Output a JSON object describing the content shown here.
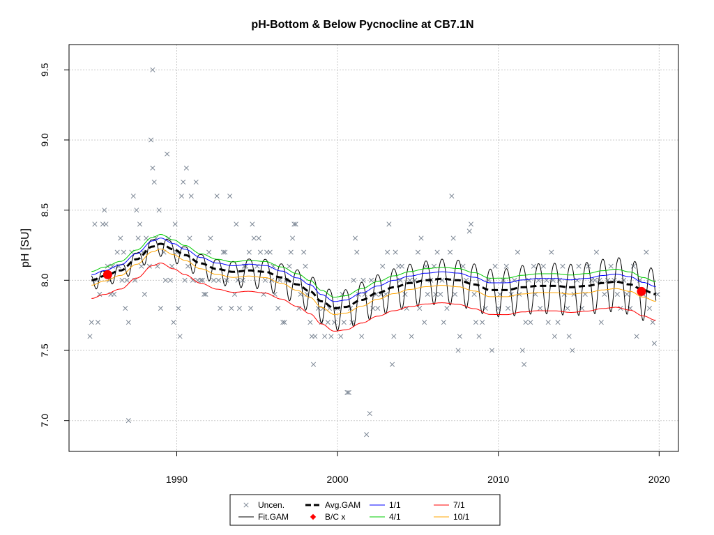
{
  "chart_data": {
    "type": "scatter",
    "title": "pH-Bottom & Below Pycnocline at CB7.1N",
    "xlabel": "",
    "ylabel": "pH [SU]",
    "xlim": [
      1983.3,
      2021.2
    ],
    "ylim": [
      6.78,
      9.68
    ],
    "x_ticks": [
      1990,
      2000,
      2010,
      2020
    ],
    "y_ticks": [
      7.0,
      7.5,
      8.0,
      8.5,
      9.0,
      9.5
    ],
    "x_tick_labels": [
      "1990",
      "2000",
      "2010",
      "2020"
    ],
    "y_tick_labels": [
      "7.0",
      "7.5",
      "8.0",
      "8.5",
      "9.0",
      "9.5"
    ],
    "grid": true,
    "legend_position": "bottom-center",
    "colors": {
      "uncensored": "#7a8593",
      "fit_gam": "#000000",
      "avg_gam": "#000000",
      "bc_x": "#ff0000",
      "d1_1": "#0000ff",
      "d4_1": "#00cc00",
      "d7_1": "#ff0000",
      "d10_1": "#ffa500"
    },
    "legend": [
      {
        "key": "uncen",
        "label": "Uncen."
      },
      {
        "key": "fit",
        "label": "Fit.GAM"
      },
      {
        "key": "avg",
        "label": "Avg.GAM"
      },
      {
        "key": "bc",
        "label": "B/C x"
      },
      {
        "key": "d1",
        "label": "1/1"
      },
      {
        "key": "d4",
        "label": "4/1"
      },
      {
        "key": "d7",
        "label": "7/1"
      },
      {
        "key": "d10",
        "label": "10/1"
      }
    ],
    "series": [
      {
        "name": "Uncen.",
        "type": "scatter",
        "marker": "x",
        "points": [
          [
            1984.6,
            7.6
          ],
          [
            1984.7,
            7.7
          ],
          [
            1984.9,
            8.4
          ],
          [
            1985.0,
            8.0
          ],
          [
            1985.1,
            7.7
          ],
          [
            1985.2,
            7.9
          ],
          [
            1985.4,
            8.4
          ],
          [
            1985.5,
            8.5
          ],
          [
            1985.6,
            8.4
          ],
          [
            1985.7,
            8.1
          ],
          [
            1985.8,
            8.0
          ],
          [
            1985.9,
            7.9
          ],
          [
            1986.0,
            8.1
          ],
          [
            1986.1,
            7.9
          ],
          [
            1986.3,
            8.2
          ],
          [
            1986.4,
            8.1
          ],
          [
            1986.5,
            8.3
          ],
          [
            1986.6,
            8.0
          ],
          [
            1986.7,
            8.2
          ],
          [
            1986.8,
            7.8
          ],
          [
            1986.9,
            8.0
          ],
          [
            1987.0,
            7.7
          ],
          [
            1987.0,
            7.0
          ],
          [
            1987.2,
            8.2
          ],
          [
            1987.3,
            8.6
          ],
          [
            1987.4,
            8.0
          ],
          [
            1987.5,
            8.5
          ],
          [
            1987.6,
            8.3
          ],
          [
            1987.7,
            8.4
          ],
          [
            1987.8,
            8.1
          ],
          [
            1987.9,
            8.2
          ],
          [
            1988.0,
            7.9
          ],
          [
            1988.1,
            8.3
          ],
          [
            1988.3,
            8.1
          ],
          [
            1988.4,
            9.0
          ],
          [
            1988.5,
            8.8
          ],
          [
            1988.5,
            9.5
          ],
          [
            1988.6,
            8.7
          ],
          [
            1988.7,
            8.3
          ],
          [
            1988.8,
            8.1
          ],
          [
            1988.9,
            8.5
          ],
          [
            1989.0,
            7.8
          ],
          [
            1989.2,
            8.2
          ],
          [
            1989.3,
            8.0
          ],
          [
            1989.4,
            8.9
          ],
          [
            1989.5,
            8.3
          ],
          [
            1989.6,
            8.0
          ],
          [
            1989.7,
            8.1
          ],
          [
            1989.8,
            7.7
          ],
          [
            1989.9,
            8.4
          ],
          [
            1990.0,
            8.2
          ],
          [
            1990.1,
            7.8
          ],
          [
            1990.2,
            7.6
          ],
          [
            1990.3,
            8.6
          ],
          [
            1990.4,
            8.7
          ],
          [
            1990.5,
            8.0
          ],
          [
            1990.6,
            8.8
          ],
          [
            1990.7,
            8.1
          ],
          [
            1990.8,
            8.3
          ],
          [
            1990.9,
            8.6
          ],
          [
            1991.0,
            8.0
          ],
          [
            1991.2,
            8.7
          ],
          [
            1991.3,
            8.0
          ],
          [
            1991.5,
            8.0
          ],
          [
            1991.6,
            8.0
          ],
          [
            1991.7,
            7.9
          ],
          [
            1991.8,
            7.9
          ],
          [
            1992.0,
            8.2
          ],
          [
            1992.1,
            8.3
          ],
          [
            1992.3,
            8.0
          ],
          [
            1992.5,
            8.6
          ],
          [
            1992.6,
            8.0
          ],
          [
            1992.7,
            7.8
          ],
          [
            1992.9,
            8.2
          ],
          [
            1993.0,
            8.2
          ],
          [
            1993.1,
            8.0
          ],
          [
            1993.3,
            8.6
          ],
          [
            1993.4,
            7.8
          ],
          [
            1993.6,
            7.9
          ],
          [
            1993.7,
            8.4
          ],
          [
            1993.8,
            8.0
          ],
          [
            1993.9,
            7.8
          ],
          [
            1994.1,
            8.0
          ],
          [
            1994.2,
            8.1
          ],
          [
            1994.3,
            8.1
          ],
          [
            1994.5,
            8.2
          ],
          [
            1994.6,
            7.8
          ],
          [
            1994.7,
            8.4
          ],
          [
            1994.8,
            8.3
          ],
          [
            1995.0,
            8.1
          ],
          [
            1995.1,
            8.3
          ],
          [
            1995.2,
            8.2
          ],
          [
            1995.4,
            7.9
          ],
          [
            1995.5,
            8.0
          ],
          [
            1995.6,
            8.2
          ],
          [
            1995.8,
            8.2
          ],
          [
            1995.9,
            8.0
          ],
          [
            1996.0,
            8.1
          ],
          [
            1996.1,
            7.9
          ],
          [
            1996.3,
            7.8
          ],
          [
            1996.4,
            8.0
          ],
          [
            1996.6,
            7.7
          ],
          [
            1996.7,
            7.7
          ],
          [
            1996.8,
            8.0
          ],
          [
            1997.0,
            8.1
          ],
          [
            1997.1,
            8.2
          ],
          [
            1997.2,
            8.3
          ],
          [
            1997.3,
            8.4
          ],
          [
            1997.4,
            8.4
          ],
          [
            1997.6,
            7.8
          ],
          [
            1997.7,
            7.9
          ],
          [
            1997.9,
            8.2
          ],
          [
            1998.0,
            8.1
          ],
          [
            1998.1,
            7.9
          ],
          [
            1998.3,
            7.7
          ],
          [
            1998.4,
            7.6
          ],
          [
            1998.5,
            7.4
          ],
          [
            1998.6,
            7.6
          ],
          [
            1998.8,
            7.8
          ],
          [
            1999.0,
            7.7
          ],
          [
            1999.1,
            7.8
          ],
          [
            1999.2,
            7.6
          ],
          [
            1999.4,
            7.7
          ],
          [
            1999.5,
            7.8
          ],
          [
            1999.6,
            7.6
          ],
          [
            1999.8,
            7.7
          ],
          [
            2000.0,
            7.8
          ],
          [
            2000.2,
            7.6
          ],
          [
            2000.3,
            7.9
          ],
          [
            2000.4,
            7.7
          ],
          [
            2000.6,
            7.2
          ],
          [
            2000.7,
            7.2
          ],
          [
            2000.8,
            7.8
          ],
          [
            2000.9,
            7.7
          ],
          [
            2001.0,
            8.0
          ],
          [
            2001.1,
            8.3
          ],
          [
            2001.2,
            8.2
          ],
          [
            2001.3,
            7.9
          ],
          [
            2001.5,
            7.6
          ],
          [
            2001.6,
            8.0
          ],
          [
            2001.7,
            7.9
          ],
          [
            2001.8,
            6.9
          ],
          [
            2002.0,
            7.05
          ],
          [
            2002.1,
            8.0
          ],
          [
            2002.2,
            7.8
          ],
          [
            2002.4,
            7.9
          ],
          [
            2002.5,
            7.8
          ],
          [
            2002.7,
            7.9
          ],
          [
            2002.8,
            8.1
          ],
          [
            2003.0,
            7.9
          ],
          [
            2003.1,
            8.2
          ],
          [
            2003.2,
            8.4
          ],
          [
            2003.4,
            7.4
          ],
          [
            2003.5,
            7.6
          ],
          [
            2003.6,
            8.2
          ],
          [
            2003.8,
            8.1
          ],
          [
            2003.9,
            8.0
          ],
          [
            2004.0,
            8.1
          ],
          [
            2004.2,
            7.9
          ],
          [
            2004.3,
            7.8
          ],
          [
            2004.5,
            8.0
          ],
          [
            2004.6,
            7.6
          ],
          [
            2004.8,
            8.0
          ],
          [
            2005.0,
            8.2
          ],
          [
            2005.1,
            7.8
          ],
          [
            2005.2,
            8.3
          ],
          [
            2005.4,
            7.7
          ],
          [
            2005.5,
            8.1
          ],
          [
            2005.6,
            7.9
          ],
          [
            2005.8,
            8.0
          ],
          [
            2006.0,
            8.1
          ],
          [
            2006.1,
            7.9
          ],
          [
            2006.2,
            8.2
          ],
          [
            2006.4,
            7.9
          ],
          [
            2006.5,
            8.0
          ],
          [
            2006.6,
            7.7
          ],
          [
            2006.8,
            7.8
          ],
          [
            2007.0,
            8.2
          ],
          [
            2007.1,
            8.6
          ],
          [
            2007.2,
            8.3
          ],
          [
            2007.3,
            7.9
          ],
          [
            2007.5,
            7.5
          ],
          [
            2007.6,
            7.6
          ],
          [
            2007.8,
            8.1
          ],
          [
            2008.0,
            8.0
          ],
          [
            2008.2,
            8.35
          ],
          [
            2008.3,
            8.4
          ],
          [
            2008.5,
            7.9
          ],
          [
            2008.6,
            7.7
          ],
          [
            2008.8,
            7.6
          ],
          [
            2009.0,
            7.7
          ],
          [
            2009.2,
            7.8
          ],
          [
            2009.4,
            8.0
          ],
          [
            2009.6,
            7.5
          ],
          [
            2009.8,
            8.1
          ],
          [
            2010.0,
            7.8
          ],
          [
            2010.1,
            7.9
          ],
          [
            2010.3,
            8.0
          ],
          [
            2010.5,
            8.1
          ],
          [
            2010.6,
            7.8
          ],
          [
            2010.8,
            7.9
          ],
          [
            2011.0,
            8.0
          ],
          [
            2011.2,
            8.2
          ],
          [
            2011.3,
            7.9
          ],
          [
            2011.5,
            7.5
          ],
          [
            2011.6,
            7.4
          ],
          [
            2011.7,
            7.7
          ],
          [
            2011.9,
            8.0
          ],
          [
            2012.0,
            7.7
          ],
          [
            2012.2,
            8.1
          ],
          [
            2012.3,
            7.9
          ],
          [
            2012.5,
            8.0
          ],
          [
            2012.6,
            7.8
          ],
          [
            2012.8,
            8.1
          ],
          [
            2013.0,
            8.0
          ],
          [
            2013.1,
            7.7
          ],
          [
            2013.3,
            8.2
          ],
          [
            2013.4,
            8.0
          ],
          [
            2013.5,
            7.6
          ],
          [
            2013.7,
            7.7
          ],
          [
            2013.8,
            8.0
          ],
          [
            2014.0,
            8.1
          ],
          [
            2014.1,
            7.9
          ],
          [
            2014.3,
            7.8
          ],
          [
            2014.4,
            7.6
          ],
          [
            2014.6,
            7.5
          ],
          [
            2014.7,
            7.9
          ],
          [
            2014.9,
            8.0
          ],
          [
            2015.0,
            8.1
          ],
          [
            2015.2,
            7.8
          ],
          [
            2015.4,
            7.9
          ],
          [
            2015.6,
            8.1
          ],
          [
            2015.8,
            8.0
          ],
          [
            2016.0,
            8.0
          ],
          [
            2016.1,
            8.2
          ],
          [
            2016.3,
            8.0
          ],
          [
            2016.4,
            7.7
          ],
          [
            2016.6,
            7.9
          ],
          [
            2016.8,
            8.0
          ],
          [
            2017.0,
            8.1
          ],
          [
            2017.2,
            8.0
          ],
          [
            2017.4,
            7.9
          ],
          [
            2017.6,
            7.8
          ],
          [
            2017.8,
            8.0
          ],
          [
            2018.0,
            7.9
          ],
          [
            2018.2,
            7.8
          ],
          [
            2018.4,
            8.1
          ],
          [
            2018.6,
            7.6
          ],
          [
            2018.8,
            8.0
          ],
          [
            2019.0,
            7.9
          ],
          [
            2019.2,
            8.2
          ],
          [
            2019.4,
            7.8
          ],
          [
            2019.6,
            7.7
          ],
          [
            2019.7,
            7.55
          ],
          [
            2019.9,
            7.9
          ]
        ]
      },
      {
        "name": "B/C x",
        "type": "points",
        "points": [
          [
            1985.7,
            8.04
          ],
          [
            2018.9,
            7.92
          ]
        ]
      }
    ],
    "avg_gam": [
      [
        1984.7,
        8.0
      ],
      [
        1985.5,
        8.03
      ],
      [
        1986.5,
        8.07
      ],
      [
        1987.5,
        8.15
      ],
      [
        1988.5,
        8.24
      ],
      [
        1989.0,
        8.26
      ],
      [
        1989.8,
        8.22
      ],
      [
        1990.5,
        8.18
      ],
      [
        1991.5,
        8.12
      ],
      [
        1992.5,
        8.08
      ],
      [
        1993.5,
        8.06
      ],
      [
        1994.5,
        8.07
      ],
      [
        1995.5,
        8.06
      ],
      [
        1996.5,
        8.02
      ],
      [
        1997.5,
        7.97
      ],
      [
        1998.3,
        7.92
      ],
      [
        1999.0,
        7.85
      ],
      [
        1999.8,
        7.8
      ],
      [
        2000.5,
        7.81
      ],
      [
        2001.5,
        7.86
      ],
      [
        2002.5,
        7.91
      ],
      [
        2003.5,
        7.95
      ],
      [
        2004.5,
        7.98
      ],
      [
        2005.5,
        8.0
      ],
      [
        2006.5,
        8.01
      ],
      [
        2007.5,
        8.0
      ],
      [
        2008.5,
        7.97
      ],
      [
        2009.5,
        7.93
      ],
      [
        2010.5,
        7.93
      ],
      [
        2011.5,
        7.95
      ],
      [
        2012.5,
        7.96
      ],
      [
        2013.5,
        7.96
      ],
      [
        2014.5,
        7.95
      ],
      [
        2015.5,
        7.96
      ],
      [
        2016.5,
        7.98
      ],
      [
        2017.3,
        7.99
      ],
      [
        2018.2,
        7.97
      ],
      [
        2019.0,
        7.93
      ],
      [
        2019.8,
        7.9
      ]
    ],
    "seasonal_offsets": {
      "1/1": 0.055,
      "4/1": 0.09,
      "7/1": -0.185,
      "10/1": -0.05
    },
    "fit_amplitude_decline": [
      [
        1984.7,
        0.05
      ],
      [
        1993.0,
        0.09
      ],
      [
        1999.5,
        0.14
      ],
      [
        2019.8,
        0.2
      ]
    ]
  }
}
